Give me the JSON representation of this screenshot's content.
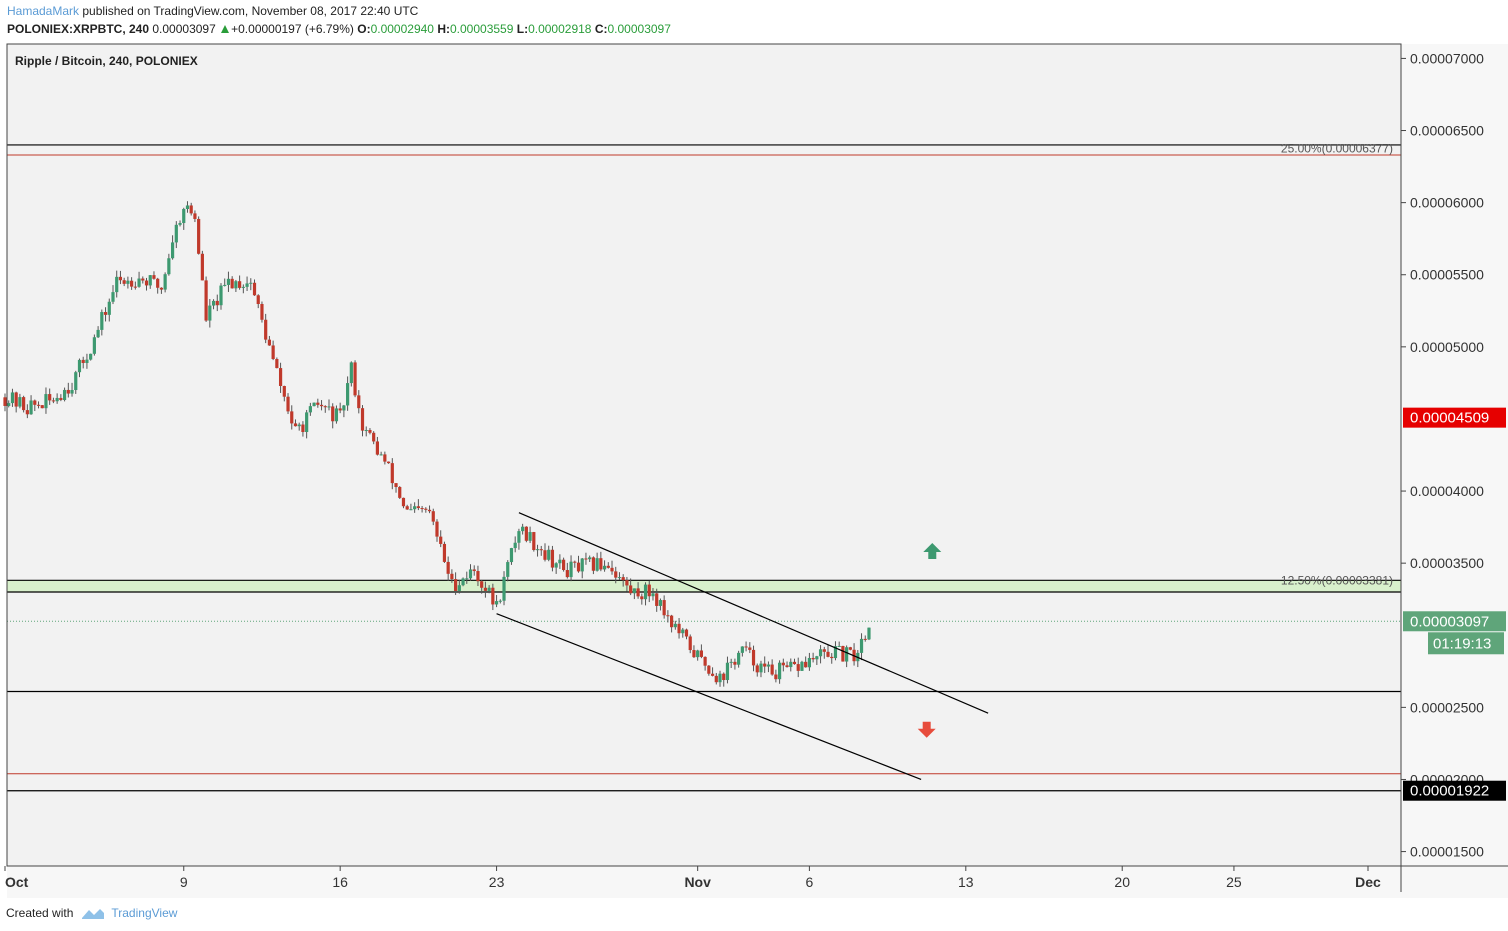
{
  "header": {
    "author": "HamadaMark",
    "published": "published on TradingView.com, November 08, 2017 22:40 UTC",
    "symbol": "POLONIEX:XRPBTC, 240",
    "last": "0.00003097",
    "change": "+0.00000197 (+6.79%)",
    "open_label": "O:",
    "open": "0.00002940",
    "high_label": "H:",
    "high": "0.00003559",
    "low_label": "L:",
    "low": "0.00002918",
    "close_label": "C:",
    "close": "0.00003097"
  },
  "footer": {
    "created_with": "Created with",
    "brand": "TradingView"
  },
  "colors": {
    "background": "#f2f2f2",
    "up": "#3d9970",
    "down": "#c0392b",
    "wick": "#555555",
    "channel": "#000000",
    "fib_line": "#c0392b",
    "zone_fill": "#d8f0cc",
    "current_badge": "#5fa57a",
    "target_badge": "#e60000",
    "support_badge": "#000000"
  },
  "chart_data": {
    "type": "candlestick",
    "title": "Ripple / Bitcoin, 240, POLONIEX",
    "xlabel": "",
    "ylabel": "",
    "ylim": [
      1.4e-05,
      7.1e-05
    ],
    "x_ticks": [
      {
        "label": "Oct",
        "date": "2017-10-01"
      },
      {
        "label": "9",
        "date": "2017-10-09"
      },
      {
        "label": "16",
        "date": "2017-10-16"
      },
      {
        "label": "23",
        "date": "2017-10-23"
      },
      {
        "label": "Nov",
        "date": "2017-11-01"
      },
      {
        "label": "6",
        "date": "2017-11-06"
      },
      {
        "label": "13",
        "date": "2017-11-13"
      },
      {
        "label": "20",
        "date": "2017-11-20"
      },
      {
        "label": "25",
        "date": "2017-11-25"
      },
      {
        "label": "Dec",
        "date": "2017-12-01"
      }
    ],
    "y_ticks": [
      "0.00007000",
      "0.00006500",
      "0.00006000",
      "0.00005500",
      "0.00005000",
      "0.00004000",
      "0.00003500",
      "0.00002500",
      "0.00002000",
      "0.00001500"
    ],
    "price_path": [
      [
        "2017-10-01",
        4.65e-05
      ],
      [
        "2017-10-02",
        4.58e-05
      ],
      [
        "2017-10-03",
        4.62e-05
      ],
      [
        "2017-10-04",
        4.75e-05
      ],
      [
        "2017-10-05",
        5.05e-05
      ],
      [
        "2017-10-06",
        5.45e-05
      ],
      [
        "2017-10-07",
        5.48e-05
      ],
      [
        "2017-10-08",
        5.41e-05
      ],
      [
        "2017-10-08T12:00",
        5.75e-05
      ],
      [
        "2017-10-09",
        5.98e-05
      ],
      [
        "2017-10-09T12:00",
        5.9e-05
      ],
      [
        "2017-10-10",
        5.2e-05
      ],
      [
        "2017-10-11",
        5.45e-05
      ],
      [
        "2017-10-12",
        5.45e-05
      ],
      [
        "2017-10-13",
        4.9e-05
      ],
      [
        "2017-10-14",
        4.4e-05
      ],
      [
        "2017-10-15",
        4.6e-05
      ],
      [
        "2017-10-16",
        4.5e-05
      ],
      [
        "2017-10-16T12:00",
        4.85e-05
      ],
      [
        "2017-10-17",
        4.45e-05
      ],
      [
        "2017-10-18",
        4.2e-05
      ],
      [
        "2017-10-19",
        3.85e-05
      ],
      [
        "2017-10-20",
        3.85e-05
      ],
      [
        "2017-10-21",
        3.35e-05
      ],
      [
        "2017-10-22",
        3.45e-05
      ],
      [
        "2017-10-23",
        3.2e-05
      ],
      [
        "2017-10-24",
        3.75e-05
      ],
      [
        "2017-10-25",
        3.6e-05
      ],
      [
        "2017-10-26",
        3.45e-05
      ],
      [
        "2017-10-27",
        3.48e-05
      ],
      [
        "2017-10-28",
        3.5e-05
      ],
      [
        "2017-10-29",
        3.3e-05
      ],
      [
        "2017-10-30",
        3.3e-05
      ],
      [
        "2017-10-31",
        3.05e-05
      ],
      [
        "2017-11-01",
        2.85e-05
      ],
      [
        "2017-11-02",
        2.7e-05
      ],
      [
        "2017-11-03",
        2.9e-05
      ],
      [
        "2017-11-04",
        2.75e-05
      ],
      [
        "2017-11-05",
        2.75e-05
      ],
      [
        "2017-11-06",
        2.82e-05
      ],
      [
        "2017-11-07",
        2.88e-05
      ],
      [
        "2017-11-08",
        2.85e-05
      ],
      [
        "2017-11-08T18:00",
        3.1e-05
      ]
    ],
    "channel_upper": [
      [
        "2017-10-24",
        3.85e-05
      ],
      [
        "2017-11-14",
        2.46e-05
      ]
    ],
    "channel_lower": [
      [
        "2017-10-23",
        3.15e-05
      ],
      [
        "2017-11-11",
        2e-05
      ]
    ],
    "horizontal_lines": [
      {
        "price": 6.4e-05,
        "color": "#000000"
      },
      {
        "price": 6.33e-05,
        "color": "#c0392b"
      },
      {
        "price": 3.381e-05,
        "color": "#000000"
      },
      {
        "price": 3.3e-05,
        "color": "#000000"
      },
      {
        "price": 2.61e-05,
        "color": "#000000"
      },
      {
        "price": 2.04e-05,
        "color": "#c0392b"
      },
      {
        "price": 1.922e-05,
        "color": "#000000"
      }
    ],
    "support_zone": [
      3.3e-05,
      3.381e-05
    ],
    "current_price_line": 3.097e-05,
    "fib_labels": [
      {
        "text": "25.00%(0.00006377)",
        "price": 6.377e-05
      },
      {
        "text": "12.50%(0.00003381)",
        "price": 3.381e-05
      }
    ],
    "arrows": [
      {
        "direction": "up",
        "date": "2017-11-11T12:00",
        "price": 3.64e-05,
        "color": "#3d9970"
      },
      {
        "direction": "down",
        "date": "2017-11-11T06:00",
        "price": 2.4e-05,
        "color": "#e74c3c"
      }
    ],
    "badges": {
      "target": "0.00004509",
      "current": "0.00003097",
      "countdown": "01:19:13",
      "support": "0.00001922"
    }
  }
}
